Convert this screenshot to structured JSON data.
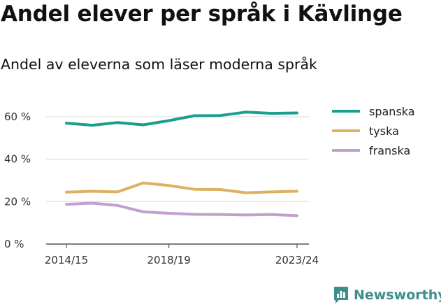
{
  "chart_data": {
    "type": "line",
    "title": "Andel elever per språk i Kävlinge",
    "subtitle": "Andel av eleverna som läser moderna språk",
    "x": [
      "2014/15",
      "2015/16",
      "2016/17",
      "2017/18",
      "2018/19",
      "2019/20",
      "2020/21",
      "2021/22",
      "2022/23",
      "2023/24"
    ],
    "x_tick_labels": [
      "2014/15",
      "2018/19",
      "2023/24"
    ],
    "y_ticks": [
      0,
      20,
      40,
      60
    ],
    "y_tick_labels": [
      "0 %",
      "20 %",
      "40 %",
      "60 %"
    ],
    "ylim": [
      0,
      65
    ],
    "grid": "horizontal",
    "legend_position": "right",
    "series": [
      {
        "name": "spanska",
        "color": "#1a9e8f",
        "values": [
          57.0,
          56.0,
          57.3,
          56.2,
          58.2,
          60.5,
          60.6,
          62.2,
          61.6,
          61.8
        ]
      },
      {
        "name": "tyska",
        "color": "#dcb261",
        "values": [
          24.5,
          24.9,
          24.6,
          28.8,
          27.6,
          25.8,
          25.7,
          24.2,
          24.6,
          24.9
        ]
      },
      {
        "name": "franska",
        "color": "#c1a0cf",
        "values": [
          18.7,
          19.3,
          18.2,
          15.2,
          14.5,
          14.0,
          13.9,
          13.7,
          13.9,
          13.4
        ]
      }
    ]
  },
  "brand": {
    "name": "Newsworthy",
    "color": "#3e8f8b",
    "icon": "bar-chart-badge-icon"
  }
}
